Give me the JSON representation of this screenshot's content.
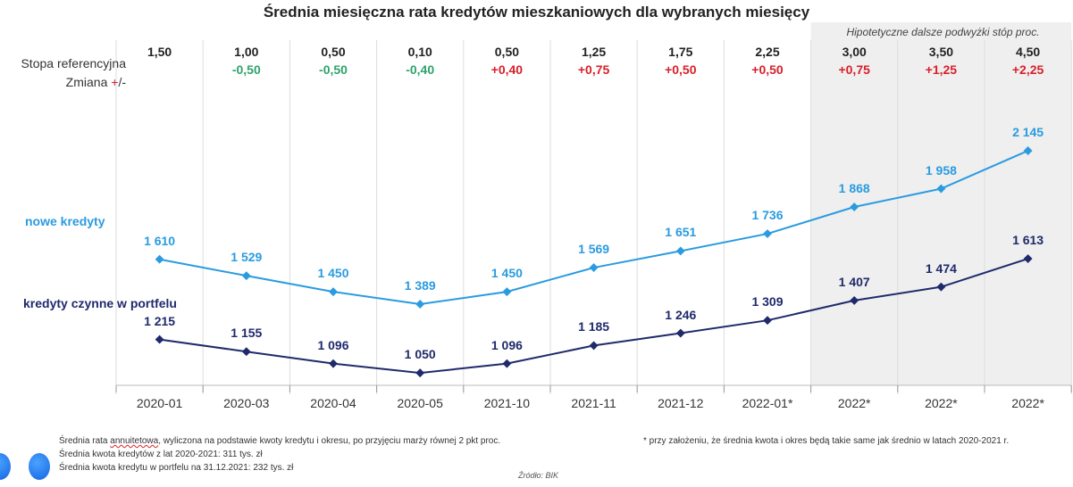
{
  "chart_data": {
    "type": "line",
    "title": "Średnia miesięczna rata kredytów mieszkaniowych dla wybranych miesięcy",
    "categories": [
      "2020-01",
      "2020-03",
      "2020-04",
      "2020-05",
      "2021-10",
      "2021-11",
      "2021-12",
      "2022-01*",
      "2022*",
      "2022*",
      "2022*"
    ],
    "series": [
      {
        "name": "nowe kredyty",
        "color": "#2a9be0",
        "values": [
          1610,
          1529,
          1450,
          1389,
          1450,
          1569,
          1651,
          1736,
          1868,
          1958,
          2145
        ],
        "labels": [
          "1 610",
          "1 529",
          "1 450",
          "1 389",
          "1 450",
          "1 569",
          "1 651",
          "1 736",
          "1 868",
          "1 958",
          "2 145"
        ]
      },
      {
        "name": "kredyty czynne w portfelu",
        "color": "#1f2a6b",
        "values": [
          1215,
          1155,
          1096,
          1050,
          1096,
          1185,
          1246,
          1309,
          1407,
          1474,
          1613
        ],
        "labels": [
          "1 215",
          "1 155",
          "1 096",
          "1 050",
          "1 096",
          "1 185",
          "1 246",
          "1 309",
          "1 407",
          "1 474",
          "1 613"
        ]
      }
    ],
    "rate_row_label": "Stopa referencyjna",
    "change_row_label": "Zmiana",
    "change_row_suffix_plus": "+",
    "change_row_suffix_rest": "/-",
    "rates": [
      "1,50",
      "1,00",
      "0,50",
      "0,10",
      "0,50",
      "1,25",
      "1,75",
      "2,25",
      "3,00",
      "3,50",
      "4,50"
    ],
    "changes": [
      "",
      "-0,50",
      "-0,50",
      "-0,40",
      "+0,40",
      "+0,75",
      "+0,50",
      "+0,50",
      "+0,75",
      "+1,25",
      "+2,25"
    ],
    "hypothetical_label": "Hipotetyczne dalsze podwyżki stóp proc.",
    "positive_color": "#d8202a",
    "negative_color": "#2ea36a",
    "shade_color": "#efefef"
  },
  "notes": {
    "line1_pre": "Średnia rata ",
    "line1_underlined": "annuitetowa",
    "line1_post": ", wyliczona na podstawie kwoty kredytu i okresu, po przyjęciu marży równej 2 pkt proc.",
    "line2": "Średnia kwota kredytów z lat 2020-2021: 311 tys. zł",
    "line3": "Średnia kwota kredytu w portfelu na 31.12.2021: 232 tys. zł",
    "footnote": "* przy założeniu, że średnia kwota i okres będą takie same jak średnio w latach 2020-2021 r.",
    "source": "Źródło: BIK"
  }
}
